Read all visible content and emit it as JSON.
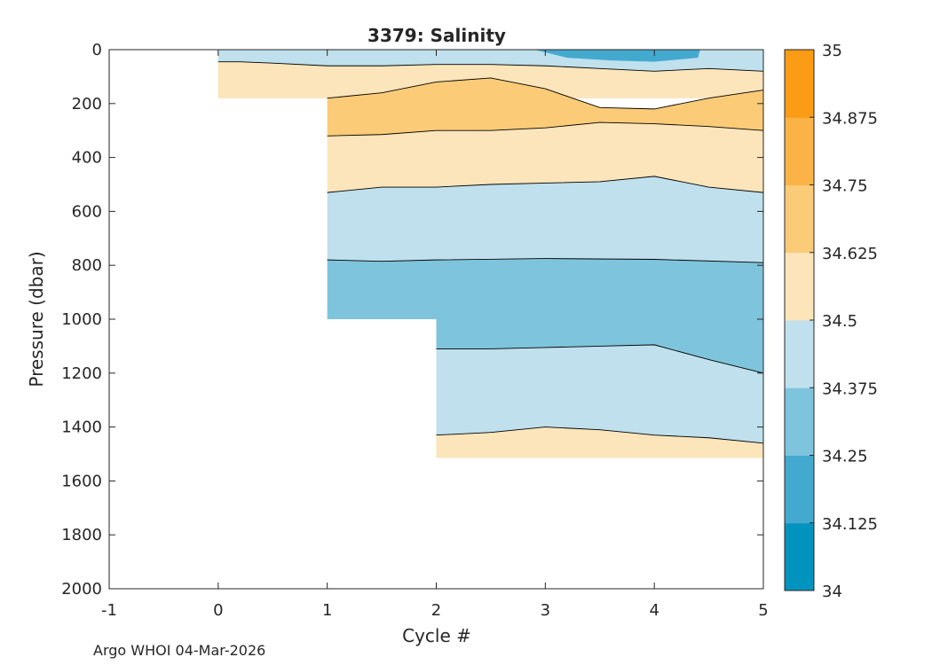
{
  "footer": "Argo WHOI 04-Mar-2026",
  "chart_data": {
    "type": "contourf",
    "title": "3379:  Salinity",
    "xlabel": "Cycle #",
    "ylabel": "Pressure (dbar)",
    "xlim": [
      -1,
      5
    ],
    "ylim": [
      0,
      2000
    ],
    "y_reversed": true,
    "xticks": [
      -1,
      0,
      1,
      2,
      3,
      4,
      5
    ],
    "yticks": [
      0,
      200,
      400,
      600,
      800,
      1000,
      1200,
      1400,
      1600,
      1800,
      2000
    ],
    "colorbar": {
      "range": [
        34,
        35
      ],
      "ticks": [
        "34",
        "34.125",
        "34.25",
        "34.375",
        "34.5",
        "34.625",
        "34.75",
        "34.875",
        "35"
      ],
      "colors": [
        "#0093be",
        "#44a9cf",
        "#7ec4dd",
        "#bfe0ec",
        "#fce5bb",
        "#fbcb78",
        "#fbb347",
        "#fc9b14"
      ]
    },
    "profile_max_pressure": [
      {
        "cycle": 0,
        "max_pressure": 180
      },
      {
        "cycle": 1,
        "max_pressure": 1000
      },
      {
        "cycle": 2,
        "max_pressure": 1515
      },
      {
        "cycle": 3,
        "max_pressure": 1515
      },
      {
        "cycle": 4,
        "max_pressure": 1515
      },
      {
        "cycle": 5,
        "max_pressure": 1515
      }
    ],
    "layers": [
      {
        "salinity_bin": "34.375-34.5",
        "x": [
          0,
          5
        ],
        "top": [
          0,
          0
        ],
        "bottom": [
          180,
          180
        ]
      },
      {
        "salinity_bin": "34.125-34.25",
        "x": [
          2.9,
          3.2,
          3.6,
          4.0,
          4.4,
          4.42
        ],
        "top": [
          0,
          0,
          0,
          0,
          0,
          0
        ],
        "bottom": [
          0,
          30,
          40,
          45,
          30,
          0
        ]
      },
      {
        "salinity_bin": "34.5-34.625",
        "x": [
          0,
          0.2,
          0.5,
          1.0,
          1.5,
          2.0,
          2.5,
          3.0,
          3.5,
          4.0,
          4.5,
          5.0
        ],
        "top": [
          45,
          45,
          50,
          60,
          60,
          55,
          55,
          60,
          70,
          80,
          70,
          80
        ],
        "bottom": [
          180,
          180,
          180,
          180,
          180,
          180,
          180,
          180,
          180,
          180,
          180,
          180
        ]
      },
      {
        "salinity_bin": "34.625-34.75",
        "x": [
          1.0,
          1.5,
          2.0,
          2.5,
          3.0,
          3.5,
          4.0,
          4.5,
          5.0
        ],
        "top": [
          180,
          160,
          120,
          105,
          145,
          215,
          220,
          180,
          150
        ],
        "bottom": [
          320,
          315,
          300,
          300,
          290,
          270,
          275,
          285,
          300
        ]
      },
      {
        "salinity_bin": "34.5-34.625",
        "x": [
          1.0,
          1.5,
          2.0,
          2.5,
          3.0,
          3.5,
          4.0,
          4.5,
          5.0
        ],
        "top": [
          320,
          315,
          300,
          300,
          290,
          270,
          275,
          285,
          300
        ],
        "bottom": [
          530,
          510,
          510,
          500,
          495,
          490,
          470,
          510,
          530
        ]
      },
      {
        "salinity_bin": "34.375-34.5",
        "x": [
          1.0,
          1.5,
          2.0,
          2.5,
          3.0,
          3.5,
          4.0,
          4.5,
          5.0
        ],
        "top": [
          530,
          510,
          510,
          500,
          495,
          490,
          470,
          510,
          530
        ],
        "bottom": [
          780,
          785,
          780,
          775,
          775,
          775,
          778,
          785,
          790
        ]
      },
      {
        "salinity_bin": "34.25-34.375",
        "x": [
          1.0,
          1.5,
          2.0,
          3.0,
          4.0,
          5.0
        ],
        "top": [
          780,
          785,
          780,
          775,
          778,
          790
        ],
        "bottom": [
          1000,
          1000,
          1000,
          1000,
          1000,
          1000
        ]
      },
      {
        "salinity_bin": "34.25-34.375",
        "x": [
          2.0,
          2.5,
          3.0,
          3.5,
          4.0,
          4.5,
          5.0
        ],
        "top": [
          1000,
          1000,
          1000,
          1000,
          1000,
          1000,
          1000
        ],
        "bottom": [
          1110,
          1110,
          1105,
          1100,
          1095,
          1150,
          1200
        ]
      },
      {
        "salinity_bin": "34.375-34.5",
        "x": [
          2.0,
          2.5,
          3.0,
          3.5,
          4.0,
          4.5,
          5.0
        ],
        "top": [
          1110,
          1110,
          1105,
          1100,
          1095,
          1150,
          1200
        ],
        "bottom": [
          1430,
          1420,
          1400,
          1410,
          1430,
          1440,
          1460
        ]
      },
      {
        "salinity_bin": "34.5-34.625",
        "x": [
          2.0,
          2.5,
          3.0,
          3.5,
          4.0,
          4.5,
          5.0
        ],
        "top": [
          1430,
          1420,
          1400,
          1410,
          1430,
          1440,
          1460
        ],
        "bottom": [
          1515,
          1515,
          1515,
          1515,
          1515,
          1515,
          1515
        ]
      }
    ]
  }
}
